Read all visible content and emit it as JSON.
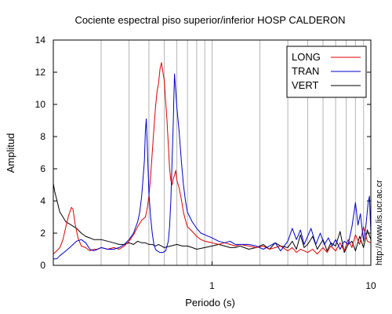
{
  "chart_data": {
    "type": "line",
    "title": "Cociente espectral piso superior/inferior  HOSP CALDERON",
    "xlabel": "Periodo (s)",
    "ylabel": "Amplitud",
    "x_scale": "log",
    "xlim": [
      0.1,
      10
    ],
    "ylim": [
      0,
      14
    ],
    "x_ticks": [
      {
        "value": 1,
        "label": "1"
      },
      {
        "value": 10,
        "label": "10"
      }
    ],
    "y_ticks": [
      0,
      2,
      4,
      6,
      8,
      10,
      12,
      14
    ],
    "grid": "vertical",
    "legend_position": "top-right",
    "watermark": "http://www.lis.ucr.ac.cr",
    "series": [
      {
        "name": "LONG",
        "color": "#dd0000",
        "points": [
          [
            0.1,
            0.7
          ],
          [
            0.105,
            0.9
          ],
          [
            0.11,
            1.1
          ],
          [
            0.115,
            1.6
          ],
          [
            0.12,
            2.4
          ],
          [
            0.125,
            3.1
          ],
          [
            0.13,
            3.6
          ],
          [
            0.133,
            3.5
          ],
          [
            0.137,
            2.6
          ],
          [
            0.143,
            1.7
          ],
          [
            0.15,
            1.2
          ],
          [
            0.16,
            1.1
          ],
          [
            0.17,
            0.9
          ],
          [
            0.18,
            1.0
          ],
          [
            0.19,
            1.0
          ],
          [
            0.2,
            1.1
          ],
          [
            0.22,
            1.0
          ],
          [
            0.24,
            1.1
          ],
          [
            0.26,
            1.0
          ],
          [
            0.28,
            1.2
          ],
          [
            0.3,
            1.5
          ],
          [
            0.32,
            1.9
          ],
          [
            0.34,
            2.4
          ],
          [
            0.36,
            2.8
          ],
          [
            0.38,
            3.0
          ],
          [
            0.39,
            3.5
          ],
          [
            0.4,
            4.3
          ],
          [
            0.41,
            5.5
          ],
          [
            0.42,
            7.0
          ],
          [
            0.43,
            8.5
          ],
          [
            0.44,
            9.8
          ],
          [
            0.45,
            10.8
          ],
          [
            0.46,
            11.3
          ],
          [
            0.47,
            12.2
          ],
          [
            0.48,
            12.6
          ],
          [
            0.49,
            12.0
          ],
          [
            0.5,
            11.5
          ],
          [
            0.51,
            10.2
          ],
          [
            0.52,
            9.0
          ],
          [
            0.53,
            7.5
          ],
          [
            0.54,
            6.0
          ],
          [
            0.55,
            5.3
          ],
          [
            0.56,
            5.0
          ],
          [
            0.57,
            5.4
          ],
          [
            0.58,
            5.6
          ],
          [
            0.59,
            5.9
          ],
          [
            0.6,
            5.3
          ],
          [
            0.62,
            4.8
          ],
          [
            0.64,
            4.1
          ],
          [
            0.66,
            3.3
          ],
          [
            0.68,
            2.8
          ],
          [
            0.7,
            2.4
          ],
          [
            0.75,
            2.1
          ],
          [
            0.8,
            1.8
          ],
          [
            0.85,
            1.6
          ],
          [
            0.9,
            1.5
          ],
          [
            1.0,
            1.4
          ],
          [
            1.1,
            1.3
          ],
          [
            1.2,
            1.4
          ],
          [
            1.3,
            1.3
          ],
          [
            1.4,
            1.2
          ],
          [
            1.5,
            1.3
          ],
          [
            1.7,
            1.2
          ],
          [
            1.9,
            1.1
          ],
          [
            2.1,
            1.2
          ],
          [
            2.3,
            1.0
          ],
          [
            2.5,
            1.1
          ],
          [
            2.7,
            1.2
          ],
          [
            3.0,
            0.9
          ],
          [
            3.2,
            1.1
          ],
          [
            3.4,
            0.8
          ],
          [
            3.6,
            1.0
          ],
          [
            3.8,
            0.9
          ],
          [
            4.0,
            0.8
          ],
          [
            4.3,
            1.0
          ],
          [
            4.6,
            0.7
          ],
          [
            5.0,
            1.1
          ],
          [
            5.3,
            0.8
          ],
          [
            5.6,
            1.2
          ],
          [
            6.0,
            0.9
          ],
          [
            6.4,
            1.4
          ],
          [
            6.8,
            0.9
          ],
          [
            7.2,
            1.6
          ],
          [
            7.6,
            1.1
          ],
          [
            8.0,
            1.9
          ],
          [
            8.5,
            1.3
          ],
          [
            9.0,
            2.4
          ],
          [
            9.5,
            1.5
          ],
          [
            10.0,
            1.4
          ]
        ]
      },
      {
        "name": "TRAN",
        "color": "#0000cc",
        "points": [
          [
            0.1,
            0.4
          ],
          [
            0.105,
            0.4
          ],
          [
            0.11,
            0.6
          ],
          [
            0.12,
            0.9
          ],
          [
            0.13,
            1.2
          ],
          [
            0.14,
            1.5
          ],
          [
            0.15,
            1.6
          ],
          [
            0.16,
            1.4
          ],
          [
            0.17,
            1.0
          ],
          [
            0.18,
            0.9
          ],
          [
            0.19,
            1.0
          ],
          [
            0.2,
            1.1
          ],
          [
            0.22,
            1.0
          ],
          [
            0.24,
            1.0
          ],
          [
            0.26,
            1.1
          ],
          [
            0.28,
            1.3
          ],
          [
            0.3,
            1.6
          ],
          [
            0.32,
            2.0
          ],
          [
            0.34,
            2.7
          ],
          [
            0.35,
            3.3
          ],
          [
            0.36,
            4.3
          ],
          [
            0.37,
            5.8
          ],
          [
            0.375,
            6.5
          ],
          [
            0.38,
            8.3
          ],
          [
            0.385,
            9.1
          ],
          [
            0.39,
            7.7
          ],
          [
            0.4,
            4.5
          ],
          [
            0.41,
            3.0
          ],
          [
            0.42,
            2.0
          ],
          [
            0.43,
            1.3
          ],
          [
            0.44,
            1.0
          ],
          [
            0.45,
            0.9
          ],
          [
            0.47,
            0.8
          ],
          [
            0.49,
            0.8
          ],
          [
            0.51,
            0.9
          ],
          [
            0.53,
            1.5
          ],
          [
            0.54,
            2.4
          ],
          [
            0.55,
            4.0
          ],
          [
            0.56,
            6.5
          ],
          [
            0.57,
            9.0
          ],
          [
            0.575,
            10.5
          ],
          [
            0.58,
            11.9
          ],
          [
            0.585,
            11.4
          ],
          [
            0.6,
            9.8
          ],
          [
            0.62,
            8.3
          ],
          [
            0.64,
            6.5
          ],
          [
            0.66,
            5.0
          ],
          [
            0.68,
            4.0
          ],
          [
            0.7,
            3.3
          ],
          [
            0.75,
            2.7
          ],
          [
            0.8,
            2.3
          ],
          [
            0.85,
            2.0
          ],
          [
            0.9,
            1.9
          ],
          [
            1.0,
            1.7
          ],
          [
            1.1,
            1.5
          ],
          [
            1.2,
            1.4
          ],
          [
            1.3,
            1.5
          ],
          [
            1.4,
            1.3
          ],
          [
            1.5,
            1.3
          ],
          [
            1.7,
            1.3
          ],
          [
            1.9,
            1.2
          ],
          [
            2.1,
            1.0
          ],
          [
            2.3,
            1.2
          ],
          [
            2.5,
            1.4
          ],
          [
            2.7,
            0.9
          ],
          [
            3.0,
            1.5
          ],
          [
            3.2,
            2.3
          ],
          [
            3.4,
            1.6
          ],
          [
            3.6,
            2.2
          ],
          [
            3.8,
            1.3
          ],
          [
            4.0,
            1.8
          ],
          [
            4.2,
            2.3
          ],
          [
            4.5,
            1.3
          ],
          [
            4.8,
            2.0
          ],
          [
            5.1,
            1.3
          ],
          [
            5.4,
            1.7
          ],
          [
            5.7,
            1.2
          ],
          [
            6.0,
            1.6
          ],
          [
            6.4,
            1.0
          ],
          [
            6.8,
            1.5
          ],
          [
            7.2,
            1.3
          ],
          [
            7.6,
            2.4
          ],
          [
            8.0,
            3.9
          ],
          [
            8.3,
            2.5
          ],
          [
            8.6,
            3.2
          ],
          [
            9.0,
            1.5
          ],
          [
            9.3,
            2.4
          ],
          [
            9.6,
            3.8
          ],
          [
            9.8,
            4.3
          ],
          [
            10.0,
            2.0
          ]
        ]
      },
      {
        "name": "VERT",
        "color": "#000000",
        "points": [
          [
            0.1,
            5.1
          ],
          [
            0.102,
            4.6
          ],
          [
            0.105,
            4.1
          ],
          [
            0.108,
            3.6
          ],
          [
            0.11,
            3.3
          ],
          [
            0.115,
            3.0
          ],
          [
            0.12,
            2.7
          ],
          [
            0.125,
            2.6
          ],
          [
            0.13,
            2.5
          ],
          [
            0.14,
            2.3
          ],
          [
            0.15,
            2.0
          ],
          [
            0.16,
            1.8
          ],
          [
            0.17,
            1.7
          ],
          [
            0.18,
            1.6
          ],
          [
            0.19,
            1.6
          ],
          [
            0.2,
            1.6
          ],
          [
            0.22,
            1.5
          ],
          [
            0.24,
            1.4
          ],
          [
            0.26,
            1.3
          ],
          [
            0.28,
            1.3
          ],
          [
            0.3,
            1.4
          ],
          [
            0.32,
            1.3
          ],
          [
            0.34,
            1.5
          ],
          [
            0.36,
            1.4
          ],
          [
            0.38,
            1.4
          ],
          [
            0.4,
            1.3
          ],
          [
            0.42,
            1.3
          ],
          [
            0.44,
            1.2
          ],
          [
            0.46,
            1.3
          ],
          [
            0.48,
            1.2
          ],
          [
            0.5,
            1.1
          ],
          [
            0.55,
            1.2
          ],
          [
            0.6,
            1.3
          ],
          [
            0.65,
            1.2
          ],
          [
            0.7,
            1.2
          ],
          [
            0.75,
            1.1
          ],
          [
            0.8,
            1.0
          ],
          [
            0.9,
            1.1
          ],
          [
            1.0,
            1.2
          ],
          [
            1.1,
            1.3
          ],
          [
            1.2,
            1.2
          ],
          [
            1.3,
            1.1
          ],
          [
            1.4,
            1.1
          ],
          [
            1.5,
            1.2
          ],
          [
            1.7,
            1.0
          ],
          [
            1.9,
            1.1
          ],
          [
            2.1,
            1.3
          ],
          [
            2.3,
            1.0
          ],
          [
            2.5,
            1.4
          ],
          [
            2.7,
            1.2
          ],
          [
            3.0,
            1.1
          ],
          [
            3.2,
            1.5
          ],
          [
            3.4,
            1.0
          ],
          [
            3.6,
            1.9
          ],
          [
            3.8,
            1.1
          ],
          [
            4.0,
            1.3
          ],
          [
            4.3,
            1.8
          ],
          [
            4.6,
            1.0
          ],
          [
            5.0,
            1.6
          ],
          [
            5.3,
            0.9
          ],
          [
            5.6,
            1.4
          ],
          [
            6.0,
            1.2
          ],
          [
            6.4,
            2.1
          ],
          [
            6.8,
            0.8
          ],
          [
            7.2,
            1.3
          ],
          [
            7.6,
            1.5
          ],
          [
            8.0,
            0.9
          ],
          [
            8.5,
            1.8
          ],
          [
            9.0,
            1.1
          ],
          [
            9.5,
            2.2
          ],
          [
            10.0,
            1.6
          ]
        ]
      }
    ]
  }
}
